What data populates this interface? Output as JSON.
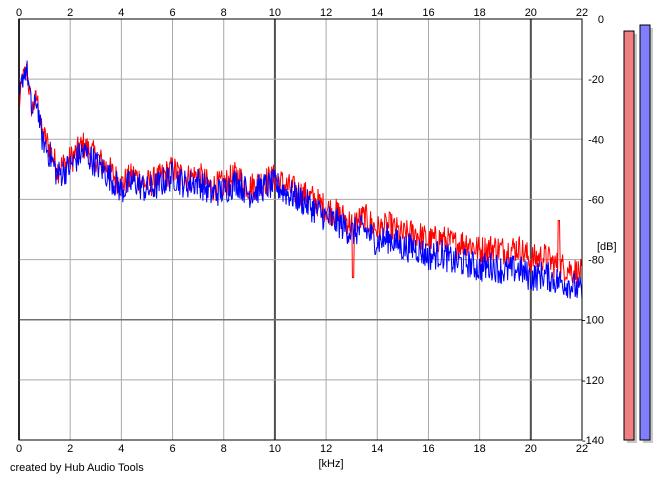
{
  "credit_text": "created by Hub Audio Tools",
  "chart_data": {
    "type": "line",
    "title": "",
    "xlabel": "[kHz]",
    "ylabel": "[dB]",
    "xlim": [
      0,
      22
    ],
    "ylim": [
      -140,
      0
    ],
    "x_ticks": [
      0,
      2,
      4,
      6,
      8,
      10,
      12,
      14,
      16,
      18,
      20,
      22
    ],
    "y_ticks": [
      0,
      -20,
      -40,
      -60,
      -80,
      -100,
      -120,
      -140
    ],
    "grid": true,
    "series": [
      {
        "color": "#ff0000",
        "x": [
          0,
          0.15,
          0.3,
          0.5,
          0.7,
          0.9,
          1.2,
          1.5,
          2.0,
          2.5,
          3.0,
          3.5,
          4.0,
          4.5,
          5.0,
          5.5,
          6.0,
          6.5,
          7.0,
          7.5,
          8.0,
          8.5,
          9.0,
          9.5,
          10.0,
          10.5,
          11.0,
          11.5,
          12.0,
          12.5,
          13.0,
          13.5,
          14.0,
          14.5,
          15.0,
          15.5,
          16.0,
          16.5,
          17.0,
          17.5,
          18.0,
          18.5,
          19.0,
          19.5,
          20.0,
          20.5,
          21.0,
          21.5,
          22.0
        ],
        "values": [
          -29,
          -20,
          -17,
          -30,
          -26,
          -38,
          -43,
          -50,
          -47,
          -42,
          -46,
          -50,
          -55,
          -52,
          -55,
          -53,
          -50,
          -53,
          -52,
          -56,
          -55,
          -52,
          -56,
          -54,
          -53,
          -56,
          -58,
          -60,
          -63,
          -65,
          -68,
          -66,
          -70,
          -69,
          -72,
          -71,
          -74,
          -73,
          -75,
          -74,
          -77,
          -76,
          -77,
          -76,
          -80,
          -79,
          -82,
          -83,
          -85
        ]
      },
      {
        "color": "#0000ff",
        "x": [
          0,
          0.15,
          0.3,
          0.5,
          0.7,
          0.9,
          1.2,
          1.5,
          2.0,
          2.5,
          3.0,
          3.5,
          4.0,
          4.5,
          5.0,
          5.5,
          6.0,
          6.5,
          7.0,
          7.5,
          8.0,
          8.5,
          9.0,
          9.5,
          10.0,
          10.5,
          11.0,
          11.5,
          12.0,
          12.5,
          13.0,
          13.5,
          14.0,
          14.5,
          15.0,
          15.5,
          16.0,
          16.5,
          17.0,
          17.5,
          18.0,
          18.5,
          19.0,
          19.5,
          20.0,
          20.5,
          21.0,
          21.5,
          22.0
        ],
        "values": [
          -27,
          -19,
          -16,
          -31,
          -27,
          -40,
          -45,
          -52,
          -49,
          -44,
          -48,
          -52,
          -57,
          -54,
          -57,
          -55,
          -52,
          -55,
          -54,
          -58,
          -57,
          -54,
          -58,
          -56,
          -55,
          -58,
          -60,
          -63,
          -66,
          -68,
          -71,
          -70,
          -74,
          -73,
          -76,
          -76,
          -79,
          -78,
          -81,
          -81,
          -83,
          -82,
          -84,
          -83,
          -86,
          -85,
          -87,
          -88,
          -91
        ]
      }
    ],
    "meters": [
      {
        "color": "#ff0000",
        "level_db": -4
      },
      {
        "color": "#0000ff",
        "level_db": -2
      }
    ]
  }
}
